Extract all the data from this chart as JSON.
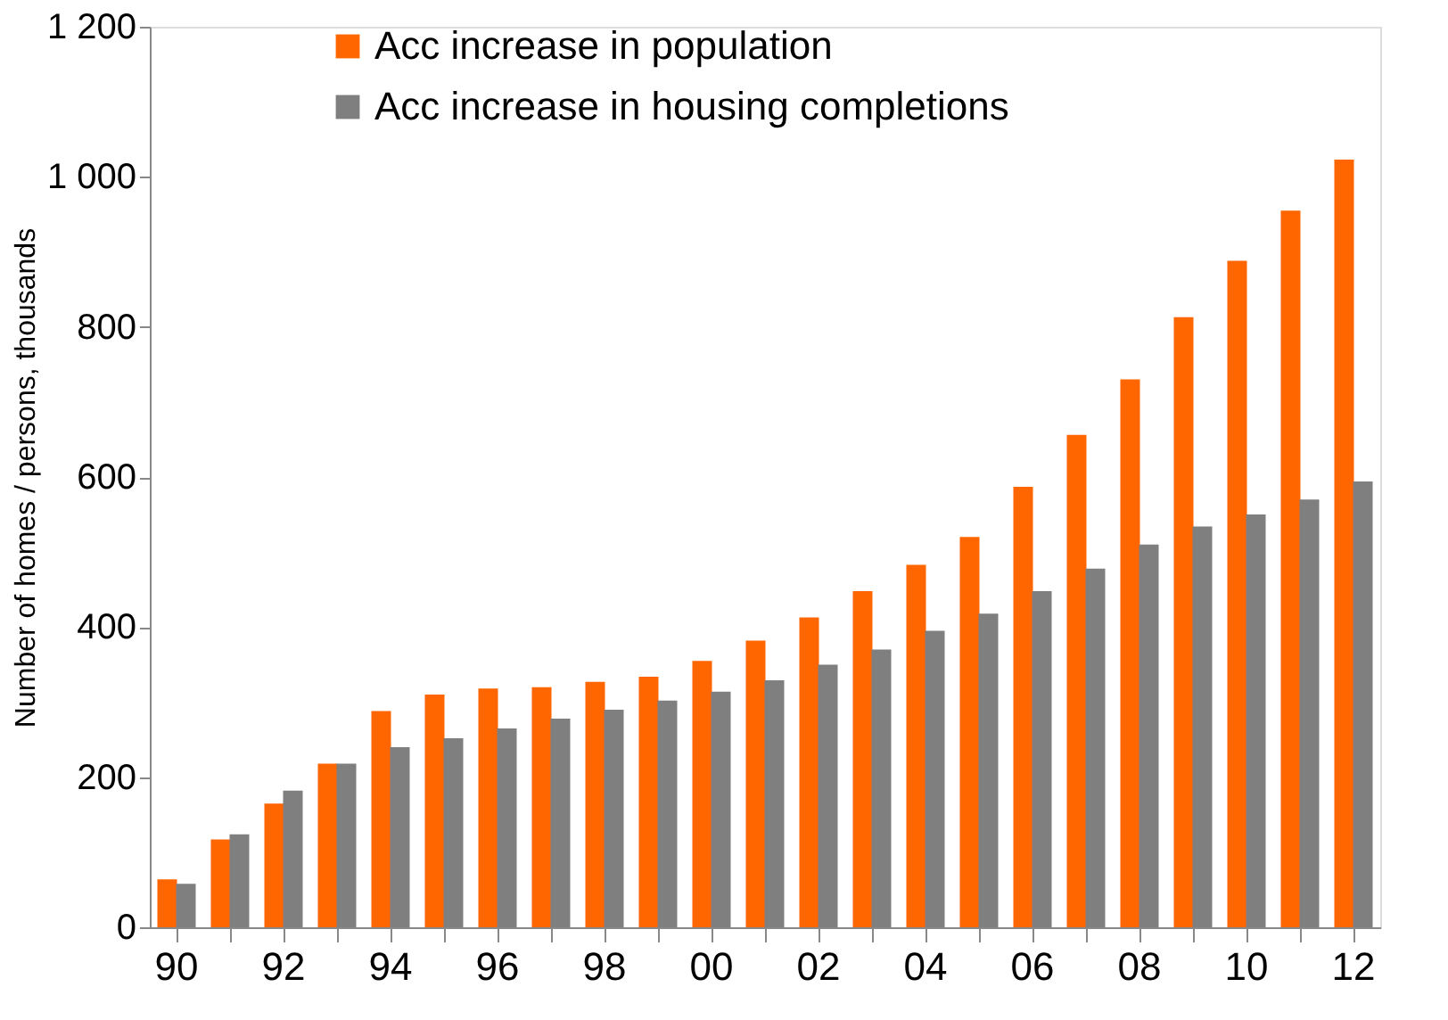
{
  "chart_data": {
    "type": "bar",
    "ylabel": "Number of homes / persons, thousands",
    "categories": [
      "90",
      null,
      "92",
      null,
      "94",
      null,
      "96",
      null,
      "98",
      null,
      "00",
      null,
      "02",
      null,
      "04",
      null,
      "06",
      null,
      "08",
      null,
      "10",
      null,
      "12"
    ],
    "series": [
      {
        "name": "Acc increase in population",
        "color": "#ff6600",
        "values": [
          64,
          117,
          165,
          218,
          288,
          310,
          318,
          320,
          327,
          334,
          355,
          382,
          413,
          448,
          483,
          520,
          587,
          656,
          730,
          813,
          888,
          955,
          1023
        ]
      },
      {
        "name": "Acc increase in housing completions",
        "color": "#7f7f7f",
        "values": [
          58,
          124,
          182,
          218,
          240,
          252,
          265,
          278,
          290,
          302,
          314,
          329,
          350,
          370,
          395,
          418,
          448,
          478,
          510,
          534,
          550,
          570,
          594
        ]
      }
    ],
    "ylim": [
      0,
      1200
    ],
    "yticks": [
      0,
      200,
      400,
      600,
      800,
      {
        "value": 1000,
        "label": "1 000"
      },
      {
        "value": 1200,
        "label": "1 200"
      }
    ],
    "grid": false,
    "legend": "top left"
  }
}
